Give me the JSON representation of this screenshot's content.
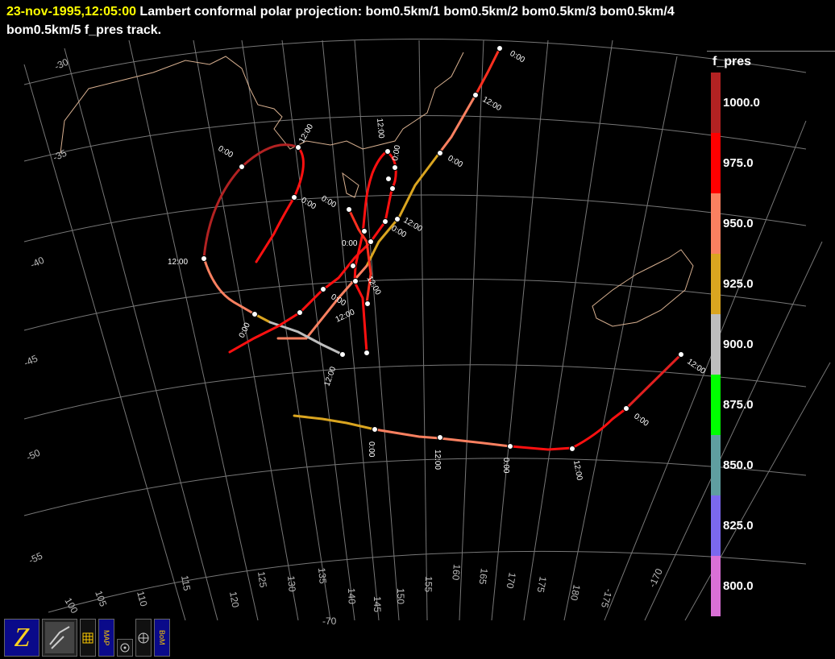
{
  "header": {
    "date": "23-nov-1995,12:05:00",
    "line1_rest": " Lambert conformal polar projection:  bom0.5km/1 bom0.5km/2 bom0.5km/3 bom0.5km/4",
    "line2": "bom0.5km/5 f_pres track."
  },
  "colorbar": {
    "title": "f_pres",
    "levels": [
      {
        "label": "1000.0",
        "color": "#b22222"
      },
      {
        "label": "975.0",
        "color": "#ff0000"
      },
      {
        "label": "950.0",
        "color": "#fa8060"
      },
      {
        "label": "925.0",
        "color": "#daa520"
      },
      {
        "label": "900.0",
        "color": "#bebebe"
      },
      {
        "label": "875.0",
        "color": "#00ff00"
      },
      {
        "label": "850.0",
        "color": "#5f9ea0"
      },
      {
        "label": "825.0",
        "color": "#7b68ee"
      },
      {
        "label": "800.0",
        "color": "#da70d6"
      }
    ]
  },
  "latitude_labels": [
    "-30",
    "-35",
    "-40",
    "-45",
    "-50",
    "-55"
  ],
  "longitude_labels": [
    "100",
    "105",
    "110",
    "115",
    "120",
    "125",
    "130",
    "135",
    "140",
    "145",
    "150",
    "155",
    "160",
    "165",
    "170",
    "175",
    "180",
    "-175",
    "-170",
    "-70"
  ],
  "time_labels": [
    "0:00",
    "12:00"
  ],
  "toolbar": {
    "items": [
      "zoom-logo",
      "satellite-view",
      "grid-tool",
      "map-tool",
      "circle-tool",
      "globe-tool",
      "bom-tool"
    ],
    "map_label": "MAP",
    "bom_label": "BoM"
  }
}
